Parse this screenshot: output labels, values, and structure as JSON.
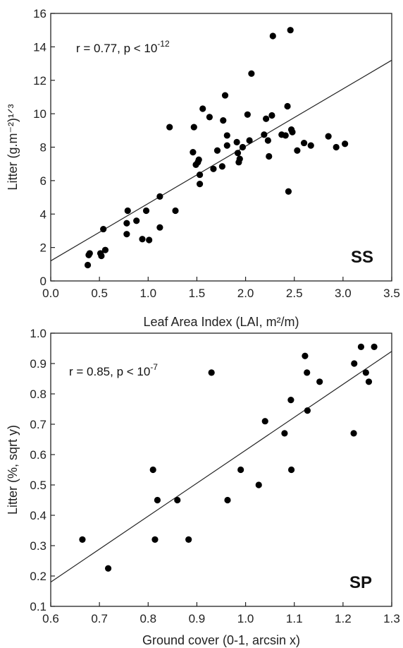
{
  "chart_data": [
    {
      "type": "scatter",
      "panel_label": "SS",
      "xlabel": "Leaf Area Index (LAI, m²/m)",
      "ylabel": "Litter (g.m⁻²)¹ᐟ³",
      "annotation": {
        "base": "r = 0.77, p < 10",
        "exp": "-12"
      },
      "xlim": [
        0.0,
        3.5
      ],
      "ylim": [
        0,
        16
      ],
      "xticks": [
        "0.0",
        "0.5",
        "1.0",
        "1.5",
        "2.0",
        "2.5",
        "3.0",
        "3.5"
      ],
      "yticks": [
        "0",
        "2",
        "4",
        "6",
        "8",
        "10",
        "12",
        "14",
        "16"
      ],
      "fit_line": {
        "x": [
          0.0,
          3.5
        ],
        "y": [
          1.2,
          13.2
        ]
      },
      "points": [
        [
          0.38,
          0.95
        ],
        [
          0.39,
          1.55
        ],
        [
          0.4,
          1.65
        ],
        [
          0.51,
          1.65
        ],
        [
          0.52,
          1.5
        ],
        [
          0.56,
          1.85
        ],
        [
          0.54,
          3.1
        ],
        [
          0.78,
          2.8
        ],
        [
          0.78,
          3.45
        ],
        [
          0.79,
          4.2
        ],
        [
          0.88,
          3.6
        ],
        [
          0.94,
          2.5
        ],
        [
          0.98,
          4.2
        ],
        [
          1.01,
          2.45
        ],
        [
          1.12,
          3.2
        ],
        [
          1.12,
          5.05
        ],
        [
          1.22,
          9.2
        ],
        [
          1.28,
          4.2
        ],
        [
          1.46,
          7.7
        ],
        [
          1.47,
          9.2
        ],
        [
          1.49,
          6.95
        ],
        [
          1.51,
          7.1
        ],
        [
          1.52,
          7.25
        ],
        [
          1.53,
          6.35
        ],
        [
          1.53,
          5.8
        ],
        [
          1.56,
          10.3
        ],
        [
          1.63,
          9.8
        ],
        [
          1.67,
          6.7
        ],
        [
          1.71,
          7.8
        ],
        [
          1.76,
          6.85
        ],
        [
          1.77,
          9.6
        ],
        [
          1.79,
          11.1
        ],
        [
          1.81,
          8.7
        ],
        [
          1.81,
          8.1
        ],
        [
          1.91,
          8.3
        ],
        [
          1.92,
          7.65
        ],
        [
          1.93,
          7.1
        ],
        [
          1.94,
          7.3
        ],
        [
          1.97,
          8.0
        ],
        [
          2.02,
          9.95
        ],
        [
          2.04,
          8.4
        ],
        [
          2.06,
          12.4
        ],
        [
          2.19,
          8.75
        ],
        [
          2.21,
          9.7
        ],
        [
          2.23,
          8.4
        ],
        [
          2.24,
          7.45
        ],
        [
          2.27,
          9.9
        ],
        [
          2.28,
          14.65
        ],
        [
          2.37,
          8.75
        ],
        [
          2.41,
          8.7
        ],
        [
          2.43,
          10.45
        ],
        [
          2.44,
          5.35
        ],
        [
          2.46,
          15.0
        ],
        [
          2.47,
          9.05
        ],
        [
          2.48,
          8.9
        ],
        [
          2.53,
          7.8
        ],
        [
          2.6,
          8.25
        ],
        [
          2.67,
          8.1
        ],
        [
          2.85,
          8.65
        ],
        [
          2.93,
          8.0
        ],
        [
          3.02,
          8.2
        ]
      ]
    },
    {
      "type": "scatter",
      "panel_label": "SP",
      "xlabel": "Ground cover (0-1, arcsin x)",
      "ylabel": "Litter (%, sqrt y)",
      "annotation": {
        "base": "r = 0.85, p < 10",
        "exp": "-7"
      },
      "xlim": [
        0.6,
        1.3
      ],
      "ylim": [
        0.1,
        1.0
      ],
      "xticks": [
        "0.6",
        "0.7",
        "0.8",
        "0.9",
        "1.0",
        "1.1",
        "1.2",
        "1.3"
      ],
      "yticks": [
        "0.1",
        "0.2",
        "0.3",
        "0.4",
        "0.5",
        "0.6",
        "0.7",
        "0.8",
        "0.9",
        "1.0"
      ],
      "fit_line": {
        "x": [
          0.6,
          1.3
        ],
        "y": [
          0.18,
          0.94
        ]
      },
      "points": [
        [
          0.665,
          0.32
        ],
        [
          0.718,
          0.225
        ],
        [
          0.81,
          0.55
        ],
        [
          0.814,
          0.32
        ],
        [
          0.819,
          0.45
        ],
        [
          0.86,
          0.45
        ],
        [
          0.883,
          0.32
        ],
        [
          0.93,
          0.87
        ],
        [
          0.99,
          0.55
        ],
        [
          0.963,
          0.45
        ],
        [
          1.027,
          0.5
        ],
        [
          1.04,
          0.71
        ],
        [
          1.08,
          0.67
        ],
        [
          1.093,
          0.78
        ],
        [
          1.094,
          0.55
        ],
        [
          1.122,
          0.925
        ],
        [
          1.126,
          0.87
        ],
        [
          1.127,
          0.745
        ],
        [
          1.152,
          0.84
        ],
        [
          1.222,
          0.67
        ],
        [
          1.223,
          0.9
        ],
        [
          1.237,
          0.955
        ],
        [
          1.247,
          0.87
        ],
        [
          1.253,
          0.84
        ],
        [
          1.264,
          0.955
        ]
      ]
    }
  ]
}
